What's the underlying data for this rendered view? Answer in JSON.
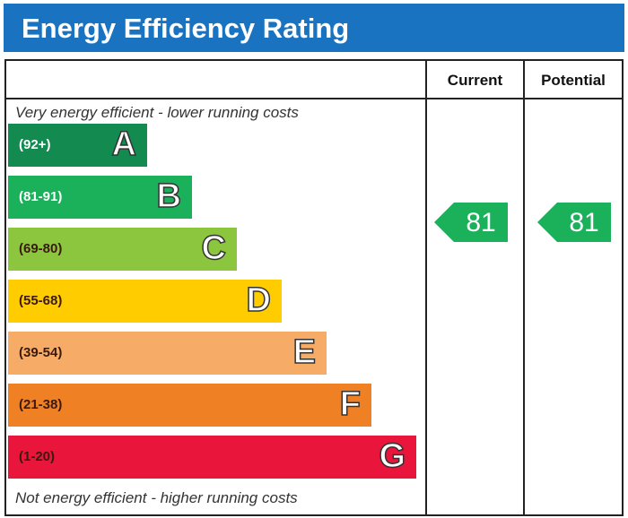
{
  "title": "Energy Efficiency Rating",
  "columns": {
    "current": "Current",
    "potential": "Potential"
  },
  "top_caption": "Very energy efficient - lower running costs",
  "bottom_caption": "Not energy efficient - higher running costs",
  "chart_data": {
    "type": "bar",
    "title": "Energy Efficiency Rating",
    "bands": [
      {
        "letter": "A",
        "range": "(92+)",
        "color": "#138a4f"
      },
      {
        "letter": "B",
        "range": "(81-91)",
        "color": "#1bb15a"
      },
      {
        "letter": "C",
        "range": "(69-80)",
        "color": "#8cc63f"
      },
      {
        "letter": "D",
        "range": "(55-68)",
        "color": "#ffcc00"
      },
      {
        "letter": "E",
        "range": "(39-54)",
        "color": "#f6ac66"
      },
      {
        "letter": "F",
        "range": "(21-38)",
        "color": "#ef8023"
      },
      {
        "letter": "G",
        "range": "(1-20)",
        "color": "#e9153b"
      }
    ],
    "current": {
      "value": "81",
      "band": "B",
      "color": "#1bb15a"
    },
    "potential": {
      "value": "81",
      "band": "B",
      "color": "#1bb15a"
    }
  }
}
